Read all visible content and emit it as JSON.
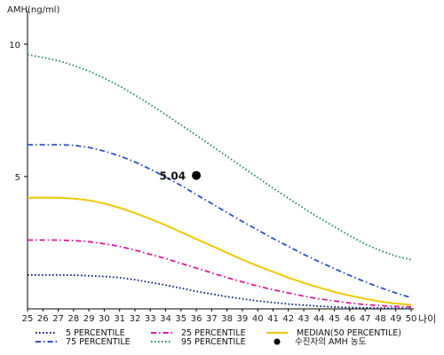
{
  "chart_data": {
    "type": "line",
    "ylabel": "AMH(ng/ml)",
    "xlabel": "나이",
    "x": [
      25,
      26,
      27,
      28,
      29,
      30,
      31,
      32,
      33,
      34,
      35,
      36,
      37,
      38,
      39,
      40,
      41,
      42,
      43,
      44,
      45,
      46,
      47,
      48,
      49,
      50
    ],
    "xlim": [
      25,
      50
    ],
    "ylim": [
      0,
      11
    ],
    "yticks": [
      5,
      10
    ],
    "series": [
      {
        "name": "5 PERCENTILE",
        "color": "#0a1f6e",
        "dash": "dot",
        "values": [
          1.28,
          1.28,
          1.28,
          1.27,
          1.25,
          1.22,
          1.18,
          1.1,
          1.0,
          0.9,
          0.78,
          0.66,
          0.56,
          0.46,
          0.38,
          0.3,
          0.24,
          0.18,
          0.14,
          0.1,
          0.07,
          0.05,
          0.04,
          0.03,
          0.02,
          0.01
        ]
      },
      {
        "name": "25 PERCENTILE",
        "color": "#e0179a",
        "dash": "dashdot",
        "values": [
          2.6,
          2.6,
          2.6,
          2.58,
          2.54,
          2.46,
          2.36,
          2.22,
          2.06,
          1.9,
          1.72,
          1.54,
          1.36,
          1.18,
          1.02,
          0.86,
          0.72,
          0.6,
          0.48,
          0.38,
          0.3,
          0.22,
          0.16,
          0.12,
          0.09,
          0.07
        ]
      },
      {
        "name": "MEDIAN(50 PERCENTILE)",
        "color": "#f0c800",
        "dash": "solid",
        "values": [
          4.2,
          4.2,
          4.2,
          4.17,
          4.1,
          3.98,
          3.82,
          3.62,
          3.4,
          3.16,
          2.9,
          2.64,
          2.38,
          2.12,
          1.86,
          1.62,
          1.4,
          1.18,
          0.98,
          0.8,
          0.64,
          0.5,
          0.38,
          0.28,
          0.2,
          0.15
        ]
      },
      {
        "name": "75 PERCENTILE",
        "color": "#2f51c8",
        "dash": "dashdot",
        "values": [
          6.2,
          6.2,
          6.2,
          6.18,
          6.1,
          5.96,
          5.78,
          5.55,
          5.28,
          4.98,
          4.66,
          4.32,
          3.98,
          3.64,
          3.3,
          2.98,
          2.66,
          2.36,
          2.06,
          1.78,
          1.52,
          1.26,
          1.02,
          0.8,
          0.6,
          0.42
        ]
      },
      {
        "name": "95 PERCENTILE",
        "color": "#2e8b57",
        "dash": "dot",
        "values": [
          9.6,
          9.5,
          9.38,
          9.2,
          8.98,
          8.72,
          8.42,
          8.08,
          7.72,
          7.34,
          6.95,
          6.56,
          6.16,
          5.76,
          5.36,
          4.96,
          4.56,
          4.18,
          3.8,
          3.44,
          3.1,
          2.76,
          2.45,
          2.2,
          2.0,
          1.85
        ]
      }
    ],
    "annotation_point": {
      "name": "수진자의 AMH 농도",
      "x": 36,
      "y": 5.04,
      "label": "5.04",
      "color": "#000000"
    },
    "grid": false,
    "legend_position": "bottom"
  }
}
